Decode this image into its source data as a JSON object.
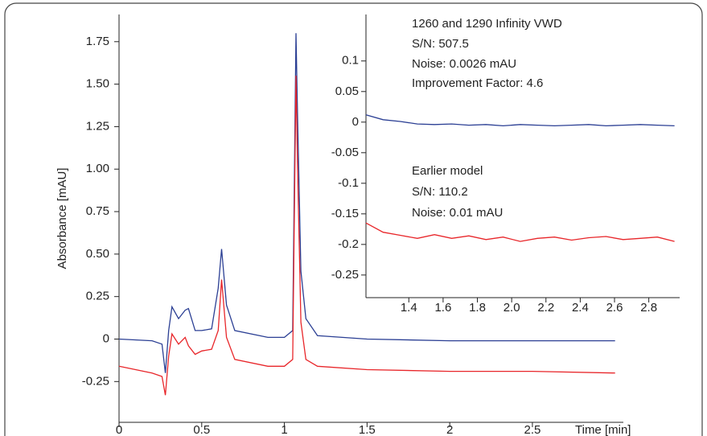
{
  "chart_data": [
    {
      "type": "line",
      "y_label": "Absorbance [mAU]",
      "x_label": "Time [min]",
      "x": [
        0,
        0.2,
        0.26,
        0.28,
        0.3,
        0.32,
        0.36,
        0.4,
        0.42,
        0.46,
        0.5,
        0.56,
        0.6,
        0.62,
        0.65,
        0.7,
        0.9,
        1.0,
        1.05,
        1.07,
        1.08,
        1.1,
        1.13,
        1.2,
        1.5,
        2.0,
        2.5,
        3.0
      ],
      "series": [
        {
          "color": "#2b3f94",
          "values": [
            0,
            -0.01,
            -0.03,
            -0.2,
            0.05,
            0.19,
            0.12,
            0.17,
            0.18,
            0.05,
            0.05,
            0.06,
            0.3,
            0.53,
            0.2,
            0.05,
            0.01,
            0.01,
            0.05,
            1.8,
            1.3,
            0.4,
            0.12,
            0.02,
            0,
            -0.01,
            -0.01,
            -0.01
          ]
        },
        {
          "color": "#e8262a",
          "values": [
            -0.16,
            -0.2,
            -0.22,
            -0.33,
            -0.1,
            0.03,
            -0.03,
            0.01,
            -0.04,
            -0.09,
            -0.07,
            -0.06,
            0.05,
            0.35,
            0.01,
            -0.12,
            -0.16,
            -0.16,
            -0.12,
            1.55,
            1.0,
            0.1,
            -0.12,
            -0.16,
            -0.18,
            -0.19,
            -0.19,
            -0.2
          ]
        }
      ],
      "xlim": [
        0,
        3.05
      ],
      "xticks": [
        0,
        0.5,
        1,
        1.5,
        2,
        2.5
      ],
      "ylim": [
        -0.49,
        1.91
      ],
      "yticks": [
        -0.25,
        0,
        0.25,
        {
          "value": 0.5,
          "label": "0.50"
        },
        0.75,
        {
          "value": 1,
          "label": "1.00"
        },
        1.25,
        {
          "value": 1.5,
          "label": "1.50"
        },
        1.75
      ]
    },
    {
      "type": "line",
      "annotations": [
        "1260 and 1290 Infinity VWD",
        "S/N: 507.5",
        "Noise: 0.0026 mAU",
        "Improvement Factor: 4.6",
        "Earlier model",
        "S/N: 110.2",
        "Noise: 0.01 mAU"
      ],
      "x": [
        1.15,
        1.25,
        1.35,
        1.45,
        1.55,
        1.65,
        1.75,
        1.85,
        1.95,
        2.05,
        2.15,
        2.25,
        2.35,
        2.45,
        2.55,
        2.65,
        2.75,
        2.85,
        2.95
      ],
      "series": [
        {
          "color": "#2b3f94",
          "values": [
            0.012,
            0.004,
            0.001,
            -0.003,
            -0.004,
            -0.003,
            -0.005,
            -0.004,
            -0.006,
            -0.004,
            -0.005,
            -0.006,
            -0.005,
            -0.004,
            -0.006,
            -0.005,
            -0.004,
            -0.005,
            -0.006
          ]
        },
        {
          "color": "#e8262a",
          "values": [
            -0.165,
            -0.18,
            -0.185,
            -0.19,
            -0.184,
            -0.19,
            -0.186,
            -0.192,
            -0.188,
            -0.195,
            -0.19,
            -0.188,
            -0.193,
            -0.189,
            -0.187,
            -0.192,
            -0.19,
            -0.188,
            -0.195
          ]
        }
      ],
      "xlim": [
        1.15,
        2.98
      ],
      "xticks": [
        1.4,
        1.6,
        1.8,
        {
          "value": 2,
          "label": "2.0"
        },
        2.2,
        2.4,
        2.6,
        2.8
      ],
      "ylim": [
        -0.287,
        0.176
      ],
      "yticks": [
        0.1,
        0.05,
        0,
        -0.05,
        -0.1,
        -0.15,
        -0.2,
        -0.25
      ]
    }
  ]
}
